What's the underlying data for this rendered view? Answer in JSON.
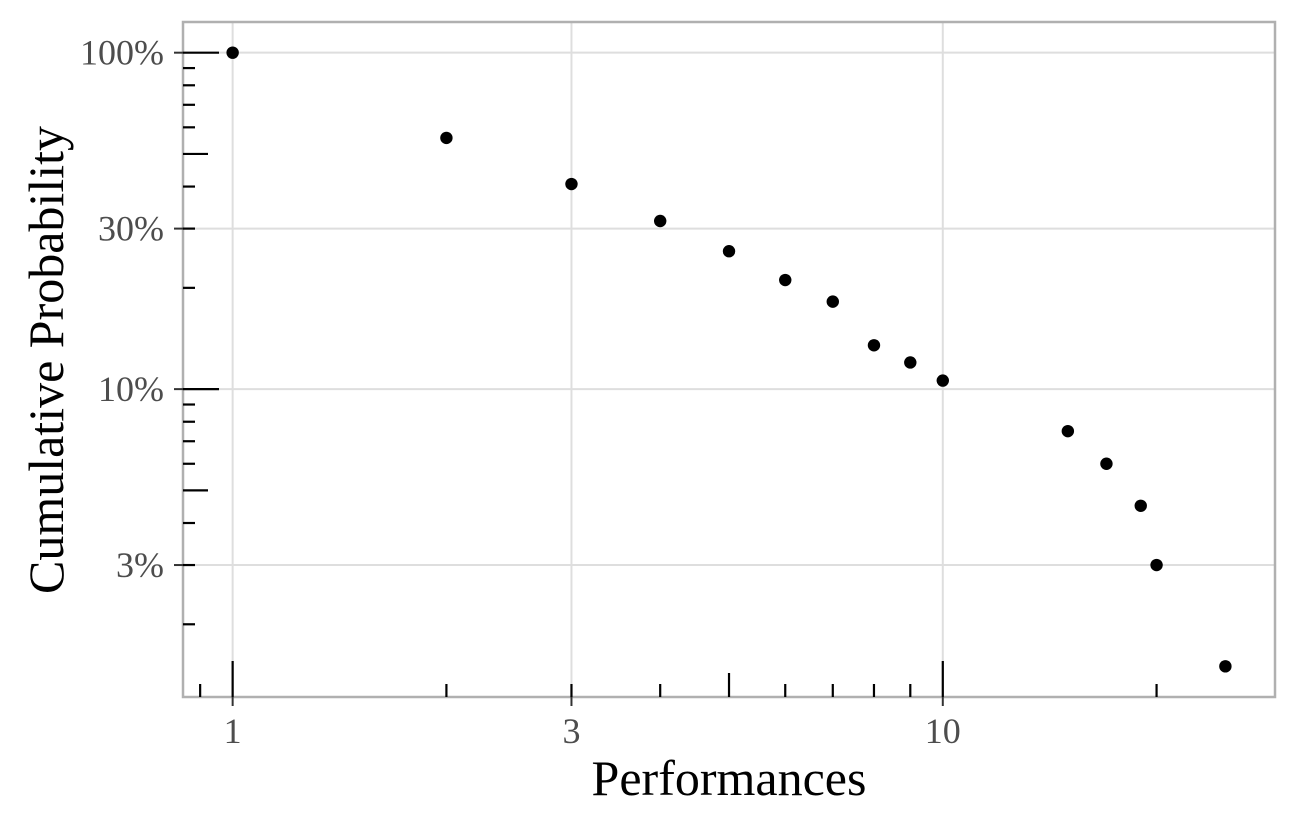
{
  "chart_data": {
    "type": "scatter",
    "title": "",
    "xlabel": "Performances",
    "ylabel": "Cumulative Probability",
    "x_scale": "log10",
    "y_scale": "log10",
    "grid": true,
    "legend": "none",
    "x_tick_labels": [
      {
        "value": 1,
        "label": "1"
      },
      {
        "value": 3,
        "label": "3"
      },
      {
        "value": 10,
        "label": "10"
      }
    ],
    "y_tick_labels": [
      {
        "value": 100,
        "label": "100%"
      },
      {
        "value": 30,
        "label": "30%"
      },
      {
        "value": 10,
        "label": "10%"
      },
      {
        "value": 3,
        "label": "3%"
      }
    ],
    "x_log_range": [
      -0.0699,
      1.4678
    ],
    "y_log_range_pct": [
      0.0849,
      2.0912
    ],
    "points": [
      {
        "x": 1,
        "y_pct": 100
      },
      {
        "x": 2,
        "y_pct": 55.8
      },
      {
        "x": 3,
        "y_pct": 40.7
      },
      {
        "x": 4,
        "y_pct": 31.6
      },
      {
        "x": 5,
        "y_pct": 25.7
      },
      {
        "x": 6,
        "y_pct": 21.1
      },
      {
        "x": 7,
        "y_pct": 18.2
      },
      {
        "x": 8,
        "y_pct": 13.5
      },
      {
        "x": 9,
        "y_pct": 12.0
      },
      {
        "x": 10,
        "y_pct": 10.6
      },
      {
        "x": 15,
        "y_pct": 7.5
      },
      {
        "x": 17,
        "y_pct": 6.0
      },
      {
        "x": 19,
        "y_pct": 4.5
      },
      {
        "x": 20,
        "y_pct": 3.0
      },
      {
        "x": 25,
        "y_pct": 1.5
      }
    ],
    "log_ticks": {
      "x": {
        "long": [
          1,
          10
        ],
        "medium": [
          5
        ],
        "short": [
          0.9,
          2,
          3,
          4,
          6,
          7,
          8,
          9,
          20
        ]
      },
      "y_pct": {
        "long": [
          100,
          10
        ],
        "medium": [
          50,
          5
        ],
        "short": [
          90,
          80,
          70,
          60,
          40,
          30,
          20,
          9,
          8,
          7,
          6,
          4,
          3,
          2
        ]
      }
    }
  },
  "colors": {
    "background": "#ffffff",
    "point": "#000000",
    "grid_line": "#dedede",
    "panel_border": "#b0b0b0",
    "tick_label": "#4d4d4d",
    "axis_title": "#000000",
    "log_tick": "#000000",
    "outer_tick": "#333333"
  }
}
